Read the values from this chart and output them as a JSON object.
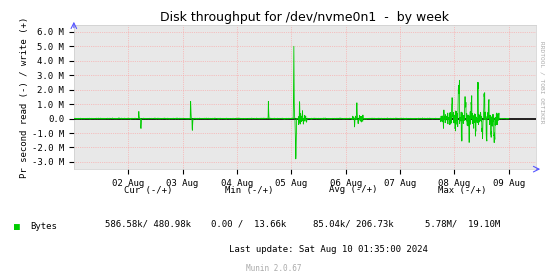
{
  "title": "Disk throughput for /dev/nvme0n1  -  by week",
  "ylabel": "Pr second read (-) / write (+)",
  "right_label": "RRDTOOL / TOBI OETIKER",
  "ylim": [
    -3500000,
    6500000
  ],
  "yticks": [
    -3000000,
    -2000000,
    -1000000,
    0,
    1000000,
    2000000,
    3000000,
    4000000,
    5000000,
    6000000
  ],
  "ytick_labels": [
    "-3.0 M",
    "-2.0 M",
    "-1.0 M",
    "0.0",
    "1.0 M",
    "2.0 M",
    "3.0 M",
    "4.0 M",
    "5.0 M",
    "6.0 M"
  ],
  "xtick_labels": [
    "02 Aug",
    "03 Aug",
    "04 Aug",
    "05 Aug",
    "06 Aug",
    "07 Aug",
    "08 Aug",
    "09 Aug"
  ],
  "legend_label": "Bytes",
  "legend_color": "#00cc00",
  "cur_text": "586.58k/ 480.98k",
  "min_text": "0.00 /  13.66k",
  "avg_text": "85.04k/ 206.73k",
  "max_text": "5.78M/  19.10M",
  "last_update": "Last update: Sat Aug 10 01:35:00 2024",
  "munin_version": "Munin 2.0.67",
  "line_color": "#00cc00",
  "bg_color": "#ffffff",
  "plot_bg_color": "#e8e8e8",
  "grid_color": "#ff9999",
  "zero_line_color": "#000000",
  "arrow_color": "#5555ff"
}
